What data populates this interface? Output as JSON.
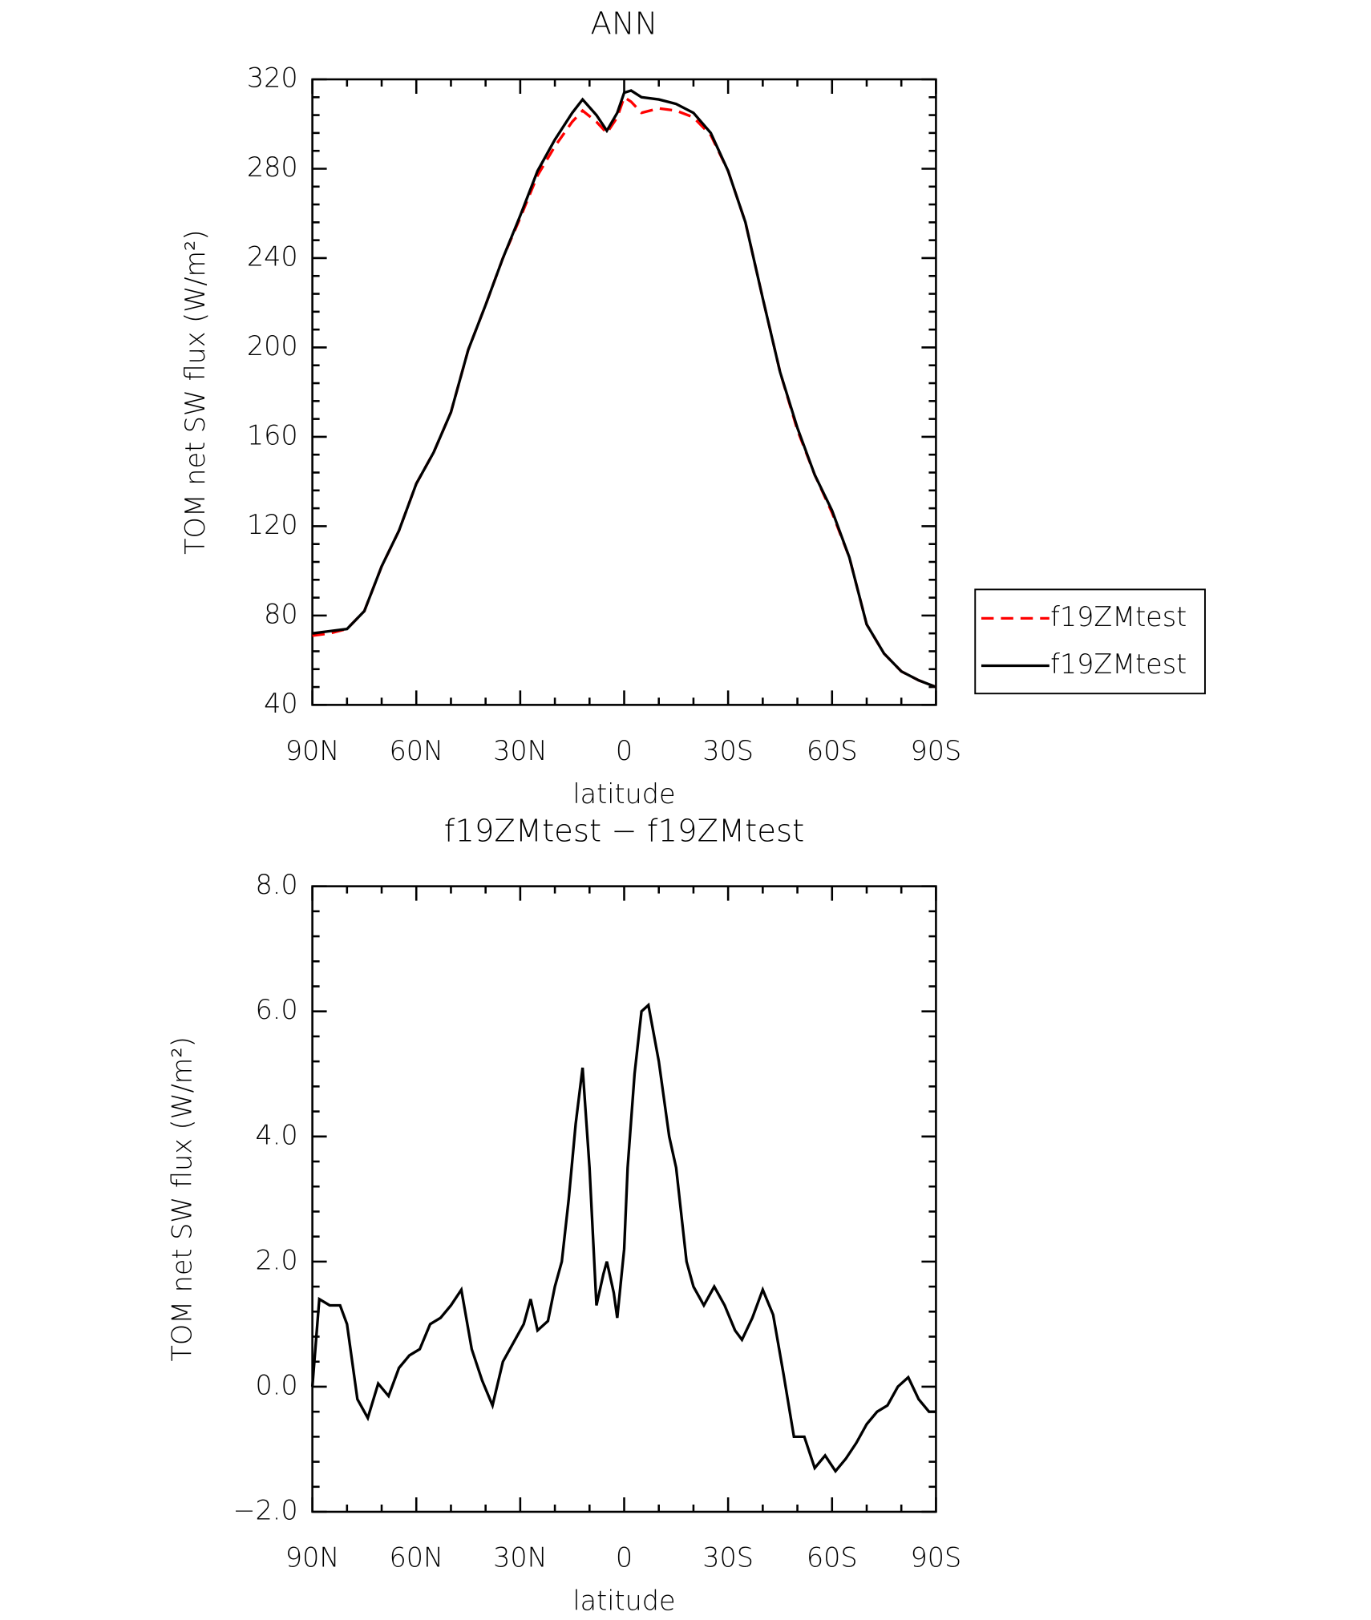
{
  "chart_data": [
    {
      "type": "line",
      "title": "ANN",
      "xlabel": "latitude",
      "ylabel": "TOM net SW flux (W/m²)",
      "x": [
        90,
        85,
        80,
        75,
        70,
        65,
        60,
        55,
        50,
        45,
        40,
        35,
        30,
        25,
        20,
        15,
        12,
        8,
        5,
        2,
        0,
        -2,
        -5,
        -10,
        -15,
        -20,
        -25,
        -30,
        -35,
        -40,
        -45,
        -50,
        -55,
        -60,
        -65,
        -70,
        -75,
        -80,
        -85,
        -90
      ],
      "series": [
        {
          "name": "f19ZMtest",
          "color": "#ff0000",
          "dash": true,
          "values": [
            71,
            72,
            74,
            82,
            102,
            118,
            139,
            153,
            171,
            199,
            219,
            240,
            258,
            277,
            290,
            301,
            306,
            301,
            296,
            303,
            312,
            310,
            305,
            307,
            306,
            303,
            295,
            279,
            256,
            222,
            189,
            163,
            143,
            126,
            106,
            76,
            63,
            55,
            51,
            48
          ]
        },
        {
          "name": "f19ZMtest",
          "color": "#000000",
          "dash": false,
          "values": [
            72,
            73,
            74,
            82,
            102,
            118,
            139,
            153,
            171,
            199,
            219,
            240,
            259,
            279,
            293,
            305,
            311,
            304,
            297,
            305,
            314,
            315,
            312,
            311,
            309,
            305,
            296,
            279,
            256,
            222,
            189,
            164,
            143,
            127,
            106,
            76,
            63,
            55,
            51,
            48
          ]
        }
      ],
      "xlim": [
        90,
        -90
      ],
      "xticks": [
        {
          "value": 90,
          "label": "90N"
        },
        {
          "value": 60,
          "label": "60N"
        },
        {
          "value": 30,
          "label": "30N"
        },
        0,
        {
          "value": -30,
          "label": "30S"
        },
        {
          "value": -60,
          "label": "60S"
        },
        {
          "value": -90,
          "label": "90S"
        }
      ],
      "ylim": [
        40,
        320
      ],
      "yticks": [
        40,
        80,
        120,
        160,
        200,
        240,
        280,
        320
      ],
      "legend": "right"
    },
    {
      "type": "line",
      "title": "f19ZMtest − f19ZMtest",
      "xlabel": "latitude",
      "ylabel": "TOM net SW flux (W/m²)",
      "x": [
        90,
        88,
        85,
        82,
        80,
        77,
        74,
        71,
        68,
        65,
        62,
        59,
        56,
        53,
        50,
        47,
        44,
        41,
        38,
        35,
        32,
        29,
        27,
        25,
        22,
        20,
        18,
        16,
        14,
        12,
        10,
        8,
        6,
        5,
        3,
        2,
        0,
        -1,
        -3,
        -5,
        -7,
        -10,
        -13,
        -15,
        -18,
        -20,
        -23,
        -26,
        -29,
        -32,
        -34,
        -37,
        -40,
        -43,
        -46,
        -49,
        -52,
        -55,
        -58,
        -61,
        -64,
        -67,
        -70,
        -73,
        -76,
        -79,
        -82,
        -85,
        -88,
        -90
      ],
      "series": [
        {
          "name": "f19ZMtest − f19ZMtest",
          "color": "#000000",
          "dash": false,
          "values": [
            0,
            1.4,
            1.3,
            1.3,
            1.0,
            -0.2,
            -0.5,
            0.05,
            -0.15,
            0.3,
            0.5,
            0.6,
            1.0,
            1.1,
            1.3,
            1.55,
            0.6,
            0.1,
            -0.3,
            0.4,
            0.7,
            1.0,
            1.4,
            0.9,
            1.05,
            1.6,
            2.0,
            3.0,
            4.2,
            5.1,
            3.5,
            1.3,
            1.8,
            2.0,
            1.5,
            1.1,
            2.2,
            3.5,
            5.0,
            6.0,
            6.1,
            5.2,
            4.0,
            3.5,
            2.0,
            1.6,
            1.3,
            1.6,
            1.3,
            0.9,
            0.75,
            1.1,
            1.55,
            1.15,
            0.2,
            -0.8,
            -0.8,
            -1.3,
            -1.1,
            -1.35,
            -1.15,
            -0.9,
            -0.6,
            -0.4,
            -0.3,
            0.0,
            0.15,
            -0.2,
            -0.4,
            -0.4
          ]
        }
      ],
      "xlim": [
        90,
        -90
      ],
      "xticks": [
        {
          "value": 90,
          "label": "90N"
        },
        {
          "value": 60,
          "label": "60N"
        },
        {
          "value": 30,
          "label": "30N"
        },
        0,
        {
          "value": -30,
          "label": "30S"
        },
        {
          "value": -60,
          "label": "60S"
        },
        {
          "value": -90,
          "label": "90S"
        }
      ],
      "ylim": [
        -2,
        8
      ],
      "yticks": [
        {
          "value": -2,
          "label": "−2.0"
        },
        {
          "value": 0,
          "label": "0.0"
        },
        {
          "value": 2,
          "label": "2.0"
        },
        {
          "value": 4,
          "label": "4.0"
        },
        {
          "value": 6,
          "label": "6.0"
        },
        {
          "value": 8,
          "label": "8.0"
        }
      ]
    }
  ]
}
